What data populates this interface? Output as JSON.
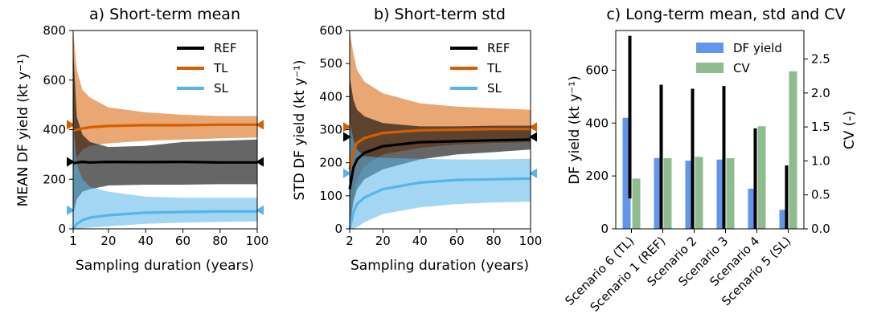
{
  "colors": {
    "REF": "#000000",
    "TL": "#d55e00",
    "SL": "#56b4e9",
    "df_bar": "#6495ed",
    "cv_bar": "#8fbc8f"
  },
  "chart_data": [
    {
      "type": "line",
      "title": "a) Short-term mean",
      "xlabel": "Sampling duration (years)",
      "ylabel": "MEAN DF yield (kt y⁻¹)",
      "xlim": [
        1,
        100
      ],
      "ylim": [
        0,
        800
      ],
      "xticks": [
        1,
        20,
        40,
        60,
        80,
        100
      ],
      "yticks": [
        0,
        200,
        400,
        600,
        800
      ],
      "legend_position": "top-right",
      "series": [
        {
          "name": "REF",
          "reference": 270,
          "x": [
            1,
            3,
            6,
            10,
            20,
            40,
            60,
            80,
            100
          ],
          "mean": [
            265,
            268,
            270,
            268,
            270,
            269,
            270,
            268,
            268
          ],
          "lower": [
            60,
            120,
            150,
            160,
            175,
            178,
            178,
            180,
            180
          ],
          "upper": [
            730,
            450,
            380,
            350,
            330,
            335,
            350,
            355,
            360
          ]
        },
        {
          "name": "TL",
          "reference": 420,
          "x": [
            1,
            3,
            6,
            10,
            20,
            40,
            60,
            80,
            100
          ],
          "mean": [
            395,
            400,
            405,
            410,
            415,
            418,
            418,
            420,
            420
          ],
          "lower": [
            230,
            290,
            320,
            335,
            345,
            355,
            360,
            365,
            368
          ],
          "upper": [
            800,
            640,
            560,
            530,
            490,
            470,
            460,
            455,
            455
          ]
        },
        {
          "name": "SL",
          "reference": 75,
          "x": [
            1,
            3,
            6,
            10,
            20,
            40,
            60,
            80,
            100
          ],
          "mean": [
            0,
            20,
            35,
            45,
            55,
            65,
            68,
            70,
            70
          ],
          "lower": [
            0,
            0,
            2,
            5,
            10,
            20,
            25,
            28,
            30
          ],
          "upper": [
            430,
            260,
            200,
            170,
            150,
            130,
            125,
            125,
            125
          ]
        }
      ]
    },
    {
      "type": "line",
      "title": "b) Short-term std",
      "xlabel": "Sampling duration (years)",
      "ylabel": "STD DF yield (kt y⁻¹)",
      "xlim": [
        2,
        100
      ],
      "ylim": [
        0,
        600
      ],
      "xticks": [
        2,
        20,
        40,
        60,
        80,
        100
      ],
      "yticks": [
        0,
        100,
        200,
        300,
        400,
        500,
        600
      ],
      "legend_position": "top-right",
      "series": [
        {
          "name": "REF",
          "reference": 278,
          "x": [
            2,
            4,
            6,
            10,
            20,
            40,
            60,
            80,
            100
          ],
          "mean": [
            120,
            185,
            210,
            230,
            250,
            262,
            265,
            268,
            270
          ],
          "lower": [
            0,
            80,
            120,
            150,
            180,
            210,
            225,
            232,
            240
          ],
          "upper": [
            460,
            390,
            360,
            340,
            320,
            310,
            310,
            312,
            312
          ]
        },
        {
          "name": "TL",
          "reference": 308,
          "x": [
            2,
            4,
            6,
            10,
            20,
            40,
            60,
            80,
            100
          ],
          "mean": [
            180,
            235,
            260,
            275,
            290,
            298,
            300,
            302,
            302
          ],
          "lower": [
            5,
            100,
            150,
            190,
            225,
            245,
            255,
            260,
            262
          ],
          "upper": [
            600,
            530,
            480,
            445,
            410,
            380,
            370,
            365,
            360
          ]
        },
        {
          "name": "SL",
          "reference": 168,
          "x": [
            2,
            4,
            6,
            10,
            20,
            40,
            60,
            80,
            100
          ],
          "mean": [
            0,
            50,
            75,
            95,
            120,
            140,
            148,
            150,
            152
          ],
          "lower": [
            0,
            0,
            5,
            20,
            45,
            65,
            75,
            80,
            82
          ],
          "upper": [
            330,
            270,
            240,
            220,
            215,
            212,
            210,
            210,
            212
          ]
        }
      ]
    },
    {
      "type": "bar",
      "title": "c) Long-term mean, std and CV",
      "categories": [
        "Scenario 6 (TL)",
        "Scenario 1 (REF)",
        "Scenario 2",
        "Scenario 3",
        "Scenario 4",
        "Scenario 5 (SL)"
      ],
      "ylabel": "DF yield (kt y⁻¹)",
      "y2label": "CV (-)",
      "ylim": [
        0,
        750
      ],
      "y2lim": [
        0,
        2.92
      ],
      "yticks": [
        0,
        200,
        400,
        600
      ],
      "y2ticks": [
        "0.0",
        "0.5",
        "1.0",
        "1.5",
        "2.0",
        "2.5"
      ],
      "legend_position": "top-right",
      "series": [
        {
          "name": "DF yield",
          "values": [
            420,
            268,
            258,
            262,
            152,
            72
          ]
        },
        {
          "name": "CV",
          "values": [
            0.74,
            1.04,
            1.06,
            1.04,
            1.51,
            2.32
          ]
        }
      ],
      "error_ranges": [
        [
          115,
          730
        ],
        [
          0,
          545
        ],
        [
          0,
          530
        ],
        [
          0,
          540
        ],
        [
          0,
          380
        ],
        [
          0,
          240
        ]
      ]
    }
  ]
}
